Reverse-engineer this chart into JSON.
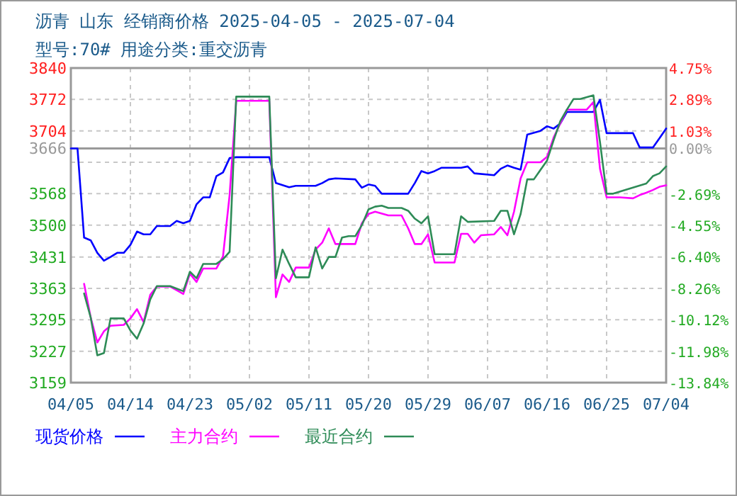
{
  "chart_data": {
    "type": "line",
    "title": "沥青  山东 经销商价格  2025-04-05 - 2025-07-04",
    "subtitle": "型号:70# 用途分类:重交沥青",
    "xlim": [
      "2025-04-05",
      "2025-07-04"
    ],
    "xticks": [
      {
        "value": "2025-04-05",
        "label": "04/05"
      },
      {
        "value": "2025-04-14",
        "label": "04/14"
      },
      {
        "value": "2025-04-23",
        "label": "04/23"
      },
      {
        "value": "2025-05-02",
        "label": "05/02"
      },
      {
        "value": "2025-05-11",
        "label": "05/11"
      },
      {
        "value": "2025-05-20",
        "label": "05/20"
      },
      {
        "value": "2025-05-29",
        "label": "05/29"
      },
      {
        "value": "2025-06-07",
        "label": "06/07"
      },
      {
        "value": "2025-06-16",
        "label": "06/16"
      },
      {
        "value": "2025-06-25",
        "label": "06/25"
      },
      {
        "value": "2025-07-04",
        "label": "07/04"
      }
    ],
    "ylim": [
      3159,
      3840
    ],
    "yticks": [
      3840,
      3772,
      3704,
      3666,
      {
        "value": 3636,
        "label": null
      },
      3568,
      3500,
      3431,
      3363,
      3295,
      3227,
      3159
    ],
    "y2lim": [
      -13.84,
      4.75
    ],
    "y2ticks": [
      {
        "value": 4.75,
        "label": "4.75%"
      },
      {
        "value": 2.89,
        "label": "2.89%"
      },
      {
        "value": 1.03,
        "label": "1.03%"
      },
      {
        "value": 0,
        "label": "0.00%"
      },
      {
        "value": -2.69,
        "label": "-2.69%"
      },
      {
        "value": -4.55,
        "label": "-4.55%"
      },
      {
        "value": -6.4,
        "label": "-6.40%"
      },
      {
        "value": -8.26,
        "label": "-8.26%"
      },
      {
        "value": -10.12,
        "label": "-10.12%"
      },
      {
        "value": -11.98,
        "label": "-11.98%"
      },
      {
        "value": -13.84,
        "label": "-13.84%"
      }
    ],
    "ref_lines": [
      {
        "axis": "y2",
        "value": 0,
        "color": "#999999",
        "line_style": "solid"
      }
    ],
    "grid": true,
    "legend": "bottom",
    "series": [
      {
        "name": "现货价格",
        "color": "#0000ff",
        "x": [
          "2025-04-05",
          "2025-04-06",
          "2025-04-07",
          "2025-04-08",
          "2025-04-09",
          "2025-04-10",
          "2025-04-11",
          "2025-04-12",
          "2025-04-13",
          "2025-04-14",
          "2025-04-15",
          "2025-04-16",
          "2025-04-17",
          "2025-04-18",
          "2025-04-20",
          "2025-04-21",
          "2025-04-22",
          "2025-04-23",
          "2025-04-24",
          "2025-04-25",
          "2025-04-26",
          "2025-04-27",
          "2025-04-28",
          "2025-04-29",
          "2025-04-30",
          "2025-05-05",
          "2025-05-06",
          "2025-05-08",
          "2025-05-09",
          "2025-05-12",
          "2025-05-13",
          "2025-05-14",
          "2025-05-15",
          "2025-05-18",
          "2025-05-19",
          "2025-05-20",
          "2025-05-21",
          "2025-05-22",
          "2025-05-26",
          "2025-05-27",
          "2025-05-28",
          "2025-05-29",
          "2025-05-30",
          "2025-05-31",
          "2025-06-03",
          "2025-06-04",
          "2025-06-05",
          "2025-06-08",
          "2025-06-09",
          "2025-06-10",
          "2025-06-11",
          "2025-06-12",
          "2025-06-13",
          "2025-06-15",
          "2025-06-16",
          "2025-06-17",
          "2025-06-18",
          "2025-06-19",
          "2025-06-23",
          "2025-06-24",
          "2025-06-25",
          "2025-06-29",
          "2025-06-30",
          "2025-07-02",
          "2025-07-03",
          "2025-07-04"
        ],
        "values": [
          3666,
          3666,
          3473,
          3467,
          3440,
          3423,
          3431,
          3440,
          3440,
          3457,
          3486,
          3480,
          3480,
          3498,
          3498,
          3509,
          3504,
          3509,
          3545,
          3560,
          3560,
          3606,
          3614,
          3645,
          3647,
          3647,
          3591,
          3582,
          3585,
          3585,
          3591,
          3599,
          3601,
          3599,
          3581,
          3588,
          3585,
          3568,
          3568,
          3591,
          3617,
          3612,
          3617,
          3624,
          3624,
          3627,
          3612,
          3608,
          3622,
          3629,
          3624,
          3620,
          3696,
          3704,
          3714,
          3709,
          3720,
          3745,
          3745,
          3771,
          3699,
          3699,
          3668,
          3668,
          3688,
          3709
        ]
      },
      {
        "name": "主力合约",
        "color": "#ff00ff",
        "x": [
          "2025-04-07",
          "2025-04-08",
          "2025-04-09",
          "2025-04-10",
          "2025-04-11",
          "2025-04-13",
          "2025-04-14",
          "2025-04-15",
          "2025-04-16",
          "2025-04-17",
          "2025-04-18",
          "2025-04-20",
          "2025-04-22",
          "2025-04-23",
          "2025-04-24",
          "2025-04-25",
          "2025-04-27",
          "2025-04-28",
          "2025-04-29",
          "2025-04-30",
          "2025-05-05",
          "2025-05-06",
          "2025-05-07",
          "2025-05-08",
          "2025-05-09",
          "2025-05-11",
          "2025-05-12",
          "2025-05-13",
          "2025-05-14",
          "2025-05-15",
          "2025-05-18",
          "2025-05-19",
          "2025-05-20",
          "2025-05-21",
          "2025-05-23",
          "2025-05-25",
          "2025-05-26",
          "2025-05-27",
          "2025-05-28",
          "2025-05-29",
          "2025-05-30",
          "2025-06-02",
          "2025-06-03",
          "2025-06-04",
          "2025-06-05",
          "2025-06-06",
          "2025-06-08",
          "2025-06-09",
          "2025-06-10",
          "2025-06-11",
          "2025-06-12",
          "2025-06-13",
          "2025-06-15",
          "2025-06-16",
          "2025-06-17",
          "2025-06-18",
          "2025-06-19",
          "2025-06-20",
          "2025-06-22",
          "2025-06-23",
          "2025-06-24",
          "2025-06-25",
          "2025-06-27",
          "2025-06-29",
          "2025-06-30",
          "2025-07-01",
          "2025-07-02",
          "2025-07-03",
          "2025-07-04"
        ],
        "values": [
          3373,
          3300,
          3246,
          3270,
          3282,
          3284,
          3298,
          3318,
          3290,
          3349,
          3367,
          3367,
          3351,
          3395,
          3377,
          3406,
          3406,
          3432,
          3565,
          3769,
          3769,
          3344,
          3393,
          3377,
          3408,
          3408,
          3447,
          3462,
          3493,
          3459,
          3459,
          3504,
          3524,
          3529,
          3521,
          3521,
          3493,
          3459,
          3459,
          3480,
          3419,
          3419,
          3481,
          3481,
          3462,
          3478,
          3480,
          3496,
          3478,
          3529,
          3601,
          3636,
          3636,
          3648,
          3690,
          3720,
          3750,
          3750,
          3750,
          3766,
          3622,
          3560,
          3560,
          3558,
          3565,
          3570,
          3576,
          3583,
          3586
        ]
      },
      {
        "name": "最近合约",
        "color": "#2e8b57",
        "x": [
          "2025-04-07",
          "2025-04-08",
          "2025-04-09",
          "2025-04-10",
          "2025-04-11",
          "2025-04-13",
          "2025-04-14",
          "2025-04-15",
          "2025-04-16",
          "2025-04-17",
          "2025-04-18",
          "2025-04-20",
          "2025-04-22",
          "2025-04-23",
          "2025-04-24",
          "2025-04-25",
          "2025-04-27",
          "2025-04-28",
          "2025-04-29",
          "2025-04-30",
          "2025-05-05",
          "2025-05-06",
          "2025-05-07",
          "2025-05-08",
          "2025-05-09",
          "2025-05-11",
          "2025-05-12",
          "2025-05-13",
          "2025-05-14",
          "2025-05-15",
          "2025-05-16",
          "2025-05-17",
          "2025-05-18",
          "2025-05-19",
          "2025-05-20",
          "2025-05-21",
          "2025-05-22",
          "2025-05-23",
          "2025-05-25",
          "2025-05-26",
          "2025-05-27",
          "2025-05-28",
          "2025-05-29",
          "2025-05-30",
          "2025-06-02",
          "2025-06-03",
          "2025-06-04",
          "2025-06-08",
          "2025-06-09",
          "2025-06-10",
          "2025-06-11",
          "2025-06-12",
          "2025-06-13",
          "2025-06-14",
          "2025-06-16",
          "2025-06-17",
          "2025-06-18",
          "2025-06-19",
          "2025-06-20",
          "2025-06-21",
          "2025-06-23",
          "2025-06-24",
          "2025-06-25",
          "2025-06-26",
          "2025-07-01",
          "2025-07-02",
          "2025-07-03",
          "2025-07-04"
        ],
        "values": [
          3352,
          3300,
          3218,
          3223,
          3298,
          3298,
          3272,
          3254,
          3287,
          3339,
          3368,
          3368,
          3357,
          3399,
          3385,
          3416,
          3416,
          3426,
          3442,
          3778,
          3778,
          3385,
          3447,
          3416,
          3387,
          3387,
          3452,
          3406,
          3431,
          3431,
          3473,
          3476,
          3476,
          3500,
          3534,
          3540,
          3542,
          3537,
          3537,
          3531,
          3514,
          3504,
          3519,
          3437,
          3437,
          3519,
          3507,
          3509,
          3531,
          3531,
          3480,
          3524,
          3599,
          3599,
          3640,
          3684,
          3725,
          3750,
          3773,
          3773,
          3781,
          3680,
          3568,
          3568,
          3590,
          3606,
          3612,
          3627
        ]
      }
    ]
  }
}
